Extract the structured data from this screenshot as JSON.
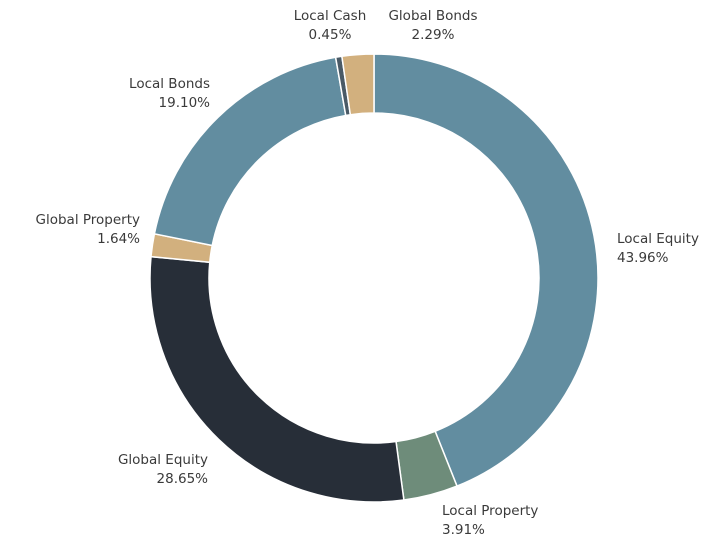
{
  "chart_data": {
    "type": "donut",
    "categories": [
      "Local Equity",
      "Local Property",
      "Global Equity",
      "Global Property",
      "Local Bonds",
      "Local Cash",
      "Global Bonds"
    ],
    "values": [
      43.96,
      3.91,
      28.65,
      1.64,
      19.1,
      0.45,
      2.29
    ],
    "value_labels": [
      "43.96%",
      "3.91%",
      "28.65%",
      "1.64%",
      "19.10%",
      "0.45%",
      "2.29%"
    ],
    "colors": [
      "#628da0",
      "#6e8c7a",
      "#272e38",
      "#d2b07e",
      "#628da0",
      "#4a5a66",
      "#d2b07e"
    ]
  }
}
